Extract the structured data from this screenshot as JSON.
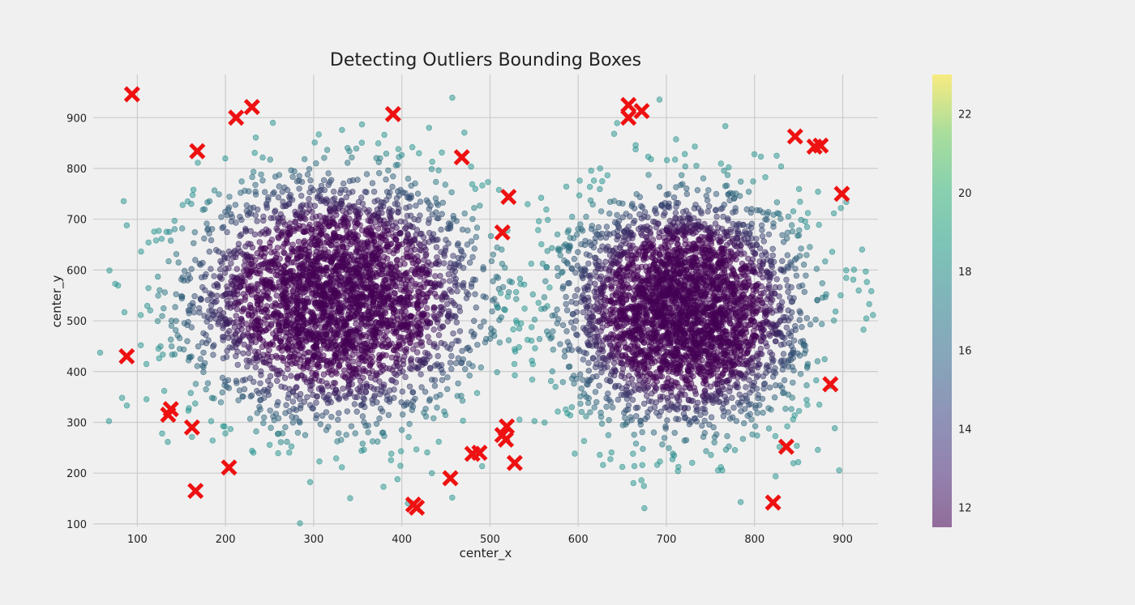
{
  "chart_data": {
    "type": "scatter",
    "title": "Detecting Outliers Bounding Boxes",
    "xlabel": "center_x",
    "ylabel": "center_y",
    "xlim": [
      50,
      940
    ],
    "ylim": [
      95,
      985
    ],
    "xticks": [
      100,
      200,
      300,
      400,
      500,
      600,
      700,
      800,
      900
    ],
    "yticks": [
      100,
      200,
      300,
      400,
      500,
      600,
      700,
      800,
      900
    ],
    "grid": true,
    "clusters": [
      {
        "name": "cluster-left",
        "center": [
          325,
          545
        ],
        "std": [
          80,
          115
        ],
        "approx_points": 3500
      },
      {
        "name": "cluster-right",
        "center": [
          720,
          520
        ],
        "std": [
          65,
          110
        ],
        "approx_points": 3500
      }
    ],
    "point_color_range": [
      "#440154",
      "#21918c"
    ],
    "point_alpha": 0.5,
    "outliers": {
      "name": "outliers",
      "marker": "X",
      "color": "#ee1111",
      "points": [
        [
          94,
          946
        ],
        [
          88,
          430
        ],
        [
          212,
          900
        ],
        [
          230,
          921
        ],
        [
          168,
          834
        ],
        [
          390,
          907
        ],
        [
          468,
          822
        ],
        [
          521,
          744
        ],
        [
          514,
          674
        ],
        [
          138,
          326
        ],
        [
          135,
          315
        ],
        [
          162,
          290
        ],
        [
          204,
          211
        ],
        [
          166,
          165
        ],
        [
          413,
          138
        ],
        [
          417,
          132
        ],
        [
          455,
          190
        ],
        [
          480,
          238
        ],
        [
          488,
          240
        ],
        [
          514,
          275
        ],
        [
          519,
          292
        ],
        [
          518,
          266
        ],
        [
          528,
          220
        ],
        [
          657,
          925
        ],
        [
          657,
          900
        ],
        [
          672,
          913
        ],
        [
          846,
          863
        ],
        [
          868,
          843
        ],
        [
          875,
          845
        ],
        [
          899,
          750
        ],
        [
          886,
          375
        ],
        [
          836,
          252
        ],
        [
          821,
          142
        ]
      ]
    },
    "colorbar": {
      "min": 11.5,
      "max": 23,
      "ticks": [
        12,
        14,
        16,
        18,
        20,
        22
      ],
      "colormap": "viridis",
      "alpha": 0.5
    }
  }
}
